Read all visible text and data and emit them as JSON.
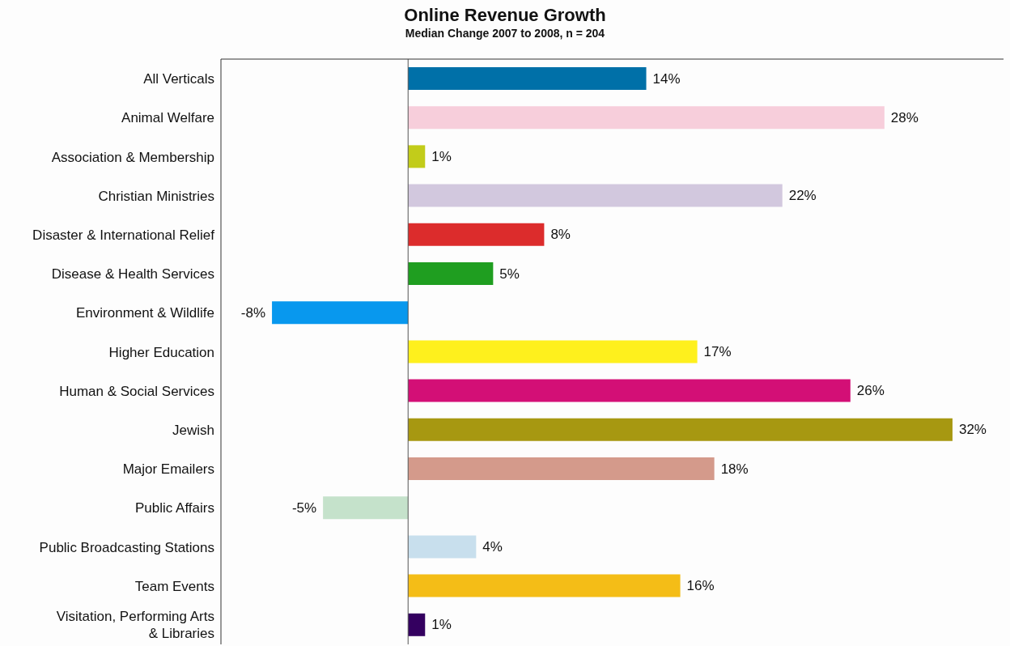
{
  "chart_data": {
    "type": "bar",
    "orientation": "horizontal",
    "title": "Online Revenue Growth",
    "subtitle": "Median Change 2007 to 2008, n = 204",
    "categories": [
      "All Verticals",
      "Animal Welfare",
      "Association & Membership",
      "Christian Ministries",
      "Disaster & International Relief",
      "Disease & Health Services",
      "Environment & Wildlife",
      "Higher Education",
      "Human & Social Services",
      "Jewish",
      "Major Emailers",
      "Public Affairs",
      "Public Broadcasting Stations",
      "Team Events",
      "Visitation, Performing Arts & Libraries"
    ],
    "values": [
      14,
      28,
      1,
      22,
      8,
      5,
      -8,
      17,
      26,
      32,
      18,
      -5,
      4,
      16,
      1
    ],
    "value_labels": [
      "14%",
      "28%",
      "1%",
      "22%",
      "8%",
      "5%",
      "-8%",
      "17%",
      "26%",
      "32%",
      "18%",
      "-5%",
      "4%",
      "16%",
      "1%"
    ],
    "colors": [
      "#0070a8",
      "#f7cedb",
      "#c2cc1a",
      "#d2c8de",
      "#dc2c2c",
      "#1f9e20",
      "#0898ee",
      "#fef01d",
      "#d30f76",
      "#a79811",
      "#d49a8b",
      "#c5e2cb",
      "#c8dfed",
      "#f4bd17",
      "#340060"
    ],
    "xlim": [
      -11,
      35
    ],
    "tick_labels": "y"
  }
}
